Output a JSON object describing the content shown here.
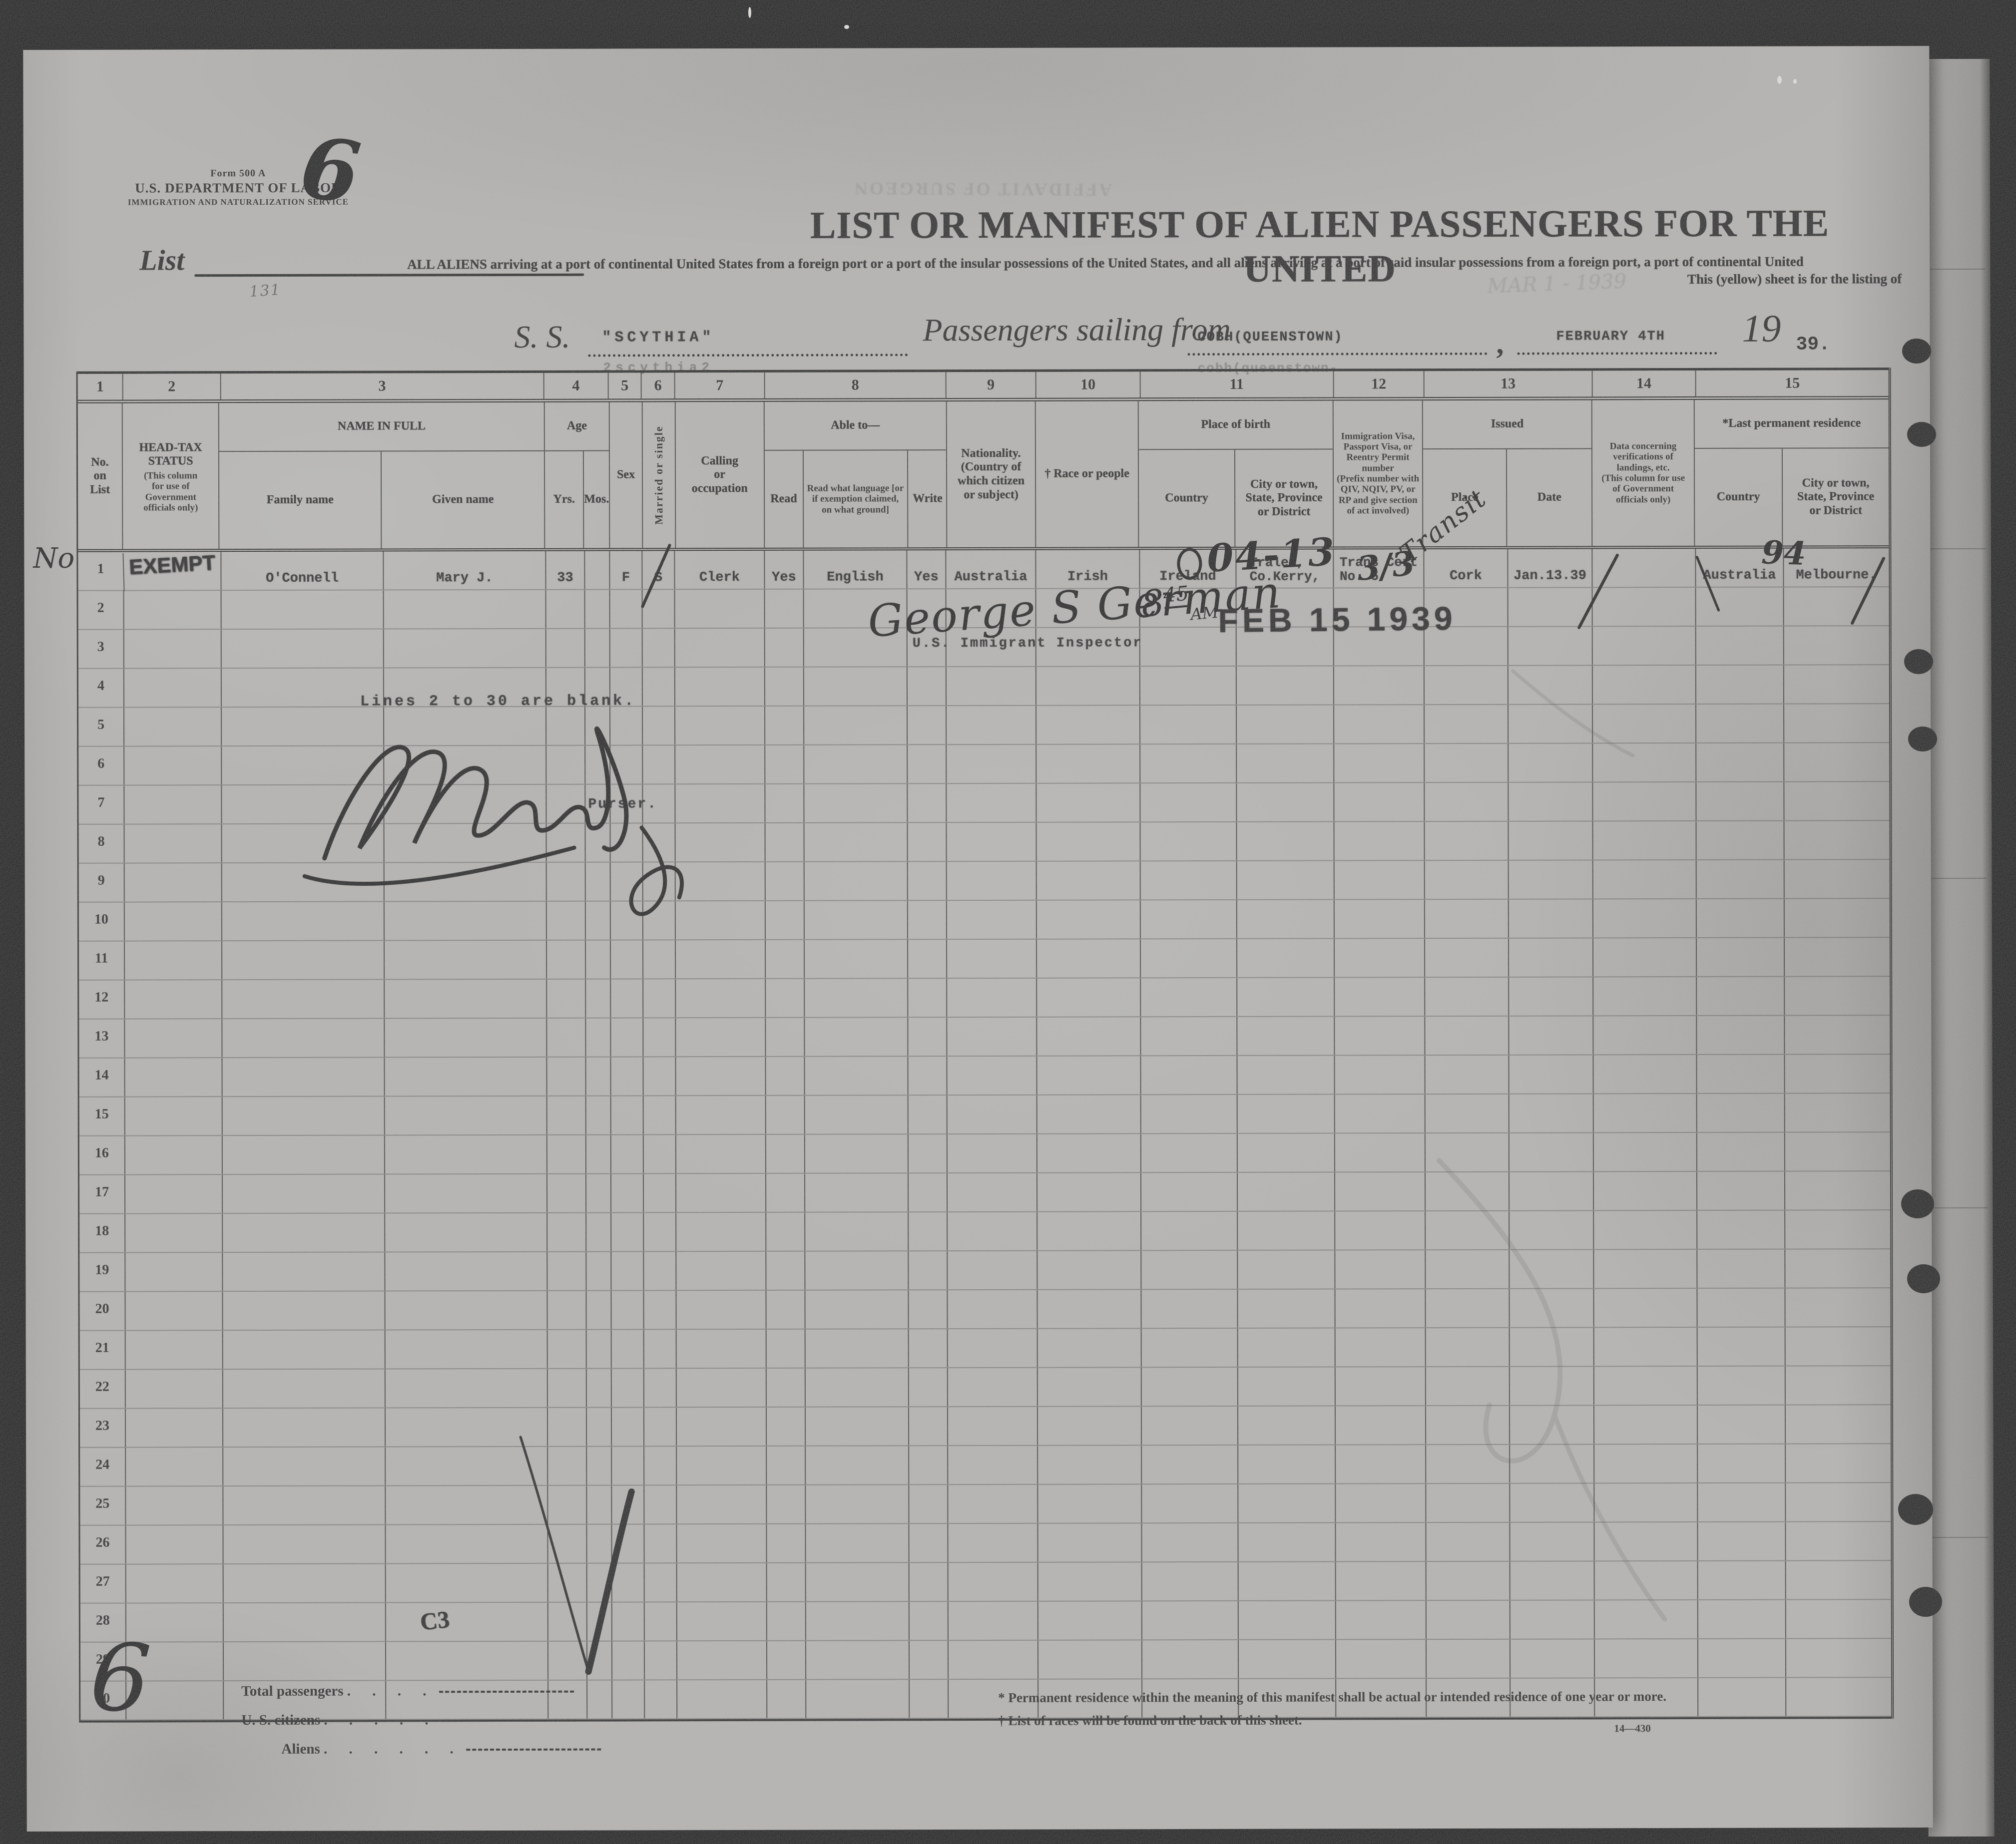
{
  "form": {
    "form_no": "Form 500 A",
    "department": "U.S. DEPARTMENT OF LABOR",
    "service": "IMMIGRATION AND NATURALIZATION SERVICE",
    "list_label": "List",
    "list_number_handwritten": "6",
    "page_number_handwritten": "6"
  },
  "title": {
    "main": "LIST OR MANIFEST OF ALIEN PASSENGERS FOR THE UNITED",
    "subtitle_line1": "ALL ALIENS arriving at a port of continental United States from a foreign port or a port of the insular possessions of the United States, and all aliens arriving at a port of said insular possessions from a foreign port, a port of continental United",
    "subtitle_line2": "This (yellow) sheet is for the listing of",
    "ghost_bleedthrough": "AFFIDAVIT OF SURGEON",
    "ghost_stamp": "MAR 1 - 1939"
  },
  "voyage": {
    "ss_label": "S. S.",
    "ship_name": "\"SCYTHIA\"",
    "ship_ghost": "2scythia2",
    "sailing_label": "Passengers sailing from",
    "port": "COBH(QUEENSTOWN)",
    "port_ghost": "cobh(queenstown-",
    "comma": ",",
    "sailing_date": "FEBRUARY 4TH",
    "year_prefix": "19",
    "year_suffix": "39."
  },
  "table": {
    "col_numbers": [
      "1",
      "2",
      "3",
      "4",
      "5",
      "6",
      "7",
      "8",
      "9",
      "10",
      "11",
      "12",
      "13",
      "14",
      "15"
    ],
    "headers": {
      "no": "No.\non\nList",
      "headtax_title": "HEAD-TAX\nSTATUS",
      "headtax_note": "(This column\nfor use of\nGovernment\nofficials only)",
      "name": "NAME IN FULL",
      "family": "Family name",
      "given": "Given name",
      "age": "Age",
      "yrs": "Yrs.",
      "mos": "Mos.",
      "sex": "Sex",
      "married": "Married or single",
      "calling": "Calling\nor\noccupation",
      "ableto": "Able to—",
      "read": "Read",
      "readlang": "Read what language [or\nif exemption claimed,\non what ground]",
      "write": "Write",
      "nationality": "Nationality.\n(Country of\nwhich citizen\nor subject)",
      "race": "† Race or people",
      "birth": "Place of birth",
      "bcountry": "Country",
      "bcity": "City or town,\nState, Province\nor District",
      "visa": "Immigration Visa,\nPassport Visa, or\nReentry Permit\nnumber\n(Prefix number with\nQIV, NQIV, PV, or\nRP and give section\nof act involved)",
      "issued": "Issued",
      "iplace": "Place",
      "idate": "Date",
      "verif": "Data concerning\nverifications of\nlandings, etc.\n(This column for use\nof Government\nofficials only)",
      "lastres": "*Last permanent residence",
      "rcountry": "Country",
      "rcity": "City or town,\nState, Province\nor District"
    },
    "rows": [
      {
        "no": "1",
        "cells": {
          "headtax": "EXEMPT",
          "family": "O'Connell",
          "given": "Mary J.",
          "yrs": "33",
          "sex": "F",
          "married": "S",
          "calling": "Clerk",
          "read": "Yes",
          "readlang": "English",
          "write": "Yes",
          "nationality": "Australia",
          "race": "Irish",
          "bcountry": "Ireland",
          "bcity": "Tralee,\nCo.Kerry,",
          "visa": "Trans Cert\nNo. 5",
          "iplace": "Cork",
          "idate": "Jan.13.39",
          "rcountry": "Australia",
          "rcity": "Melbourne."
        }
      },
      {
        "no": "2"
      },
      {
        "no": "3"
      },
      {
        "no": "4"
      },
      {
        "no": "5"
      },
      {
        "no": "6"
      },
      {
        "no": "7"
      },
      {
        "no": "8"
      },
      {
        "no": "9"
      },
      {
        "no": "10"
      },
      {
        "no": "11"
      },
      {
        "no": "12"
      },
      {
        "no": "13"
      },
      {
        "no": "14"
      },
      {
        "no": "15"
      },
      {
        "no": "16"
      },
      {
        "no": "17"
      },
      {
        "no": "18"
      },
      {
        "no": "19"
      },
      {
        "no": "20"
      },
      {
        "no": "21"
      },
      {
        "no": "22"
      },
      {
        "no": "23"
      },
      {
        "no": "24"
      },
      {
        "no": "25"
      },
      {
        "no": "26"
      },
      {
        "no": "27"
      },
      {
        "no": "28"
      },
      {
        "no": "29"
      },
      {
        "no": "30"
      }
    ]
  },
  "annotations": {
    "margin_no": "No",
    "visa_circle": "0",
    "visa_number_hw": "04-13",
    "cert_number_hw": "3/3",
    "transit_hw": "Transit",
    "verif_hw": "94",
    "inspector_signature": "George S German",
    "inspector_title": "U.S. Immigrant Inspector",
    "time_hour": "8",
    "time_minutes": "45",
    "time_ampm": "AM",
    "date_stamp": "FEB 15 1939",
    "blank_note": "Lines 2 to 30 are blank.",
    "purser_label": "Purser.",
    "c3_mark": "C3",
    "scribble": "131"
  },
  "totals": {
    "total_label": "Total passengers",
    "total_dots": ". . . .",
    "citizens_label": "U. S. citizens",
    "citizens_dots": ". . . . .",
    "aliens_label": "Aliens",
    "aliens_dots": ". . . . . .",
    "footnote1": "* Permanent residence within the meaning of this manifest shall be actual or intended residence of one year or more.",
    "footnote2": "† List of races will be found on the back of this sheet.",
    "form_code": "14—430"
  }
}
